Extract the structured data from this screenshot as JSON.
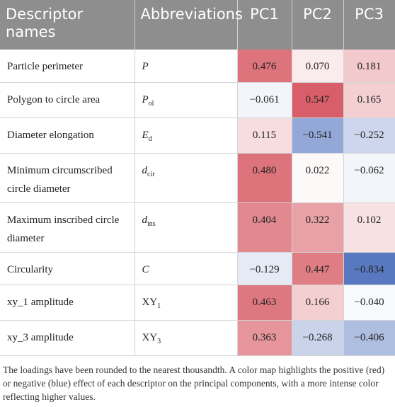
{
  "table": {
    "header": [
      "Descriptor names",
      "Abbreviations",
      "PC1",
      "PC2",
      "PC3"
    ],
    "rows": [
      [
        "Particle perimeter",
        {
          "base": "P",
          "sub": null,
          "italic": true
        },
        "0.476",
        "0.070",
        "0.181"
      ],
      [
        "Polygon to circle area",
        {
          "base": "P",
          "sub": "ol",
          "italic": true
        },
        "−0.061",
        "0.547",
        "0.165"
      ],
      [
        "Diameter elongation",
        {
          "base": "E",
          "sub": "d",
          "italic": true
        },
        "0.115",
        "−0.541",
        "−0.252"
      ],
      [
        "Minimum circumscribed circle diameter",
        {
          "base": "d",
          "sub": "cir",
          "italic": true
        },
        "0.480",
        "0.022",
        "−0.062"
      ],
      [
        "Maximum inscribed circle diameter",
        {
          "base": "d",
          "sub": "ins",
          "italic": true
        },
        "0.404",
        "0.322",
        "0.102"
      ],
      [
        "Circularity",
        {
          "base": "C",
          "sub": null,
          "italic": true
        },
        "−0.129",
        "0.447",
        "−0.834"
      ],
      [
        "xy_1 amplitude",
        {
          "base": "XY",
          "sub": "1",
          "italic": false
        },
        "0.463",
        "0.166",
        "−0.040"
      ],
      [
        "xy_3 amplitude",
        {
          "base": "XY",
          "sub": "3",
          "italic": false
        },
        "0.363",
        "−0.268",
        "−0.406"
      ]
    ]
  },
  "caption": "The loadings have been rounded to the nearest thousandth. A color map highlights the positive (red) or negative (blue) effect of each descriptor on the principal components, with a more intense color reflecting higher values."
}
